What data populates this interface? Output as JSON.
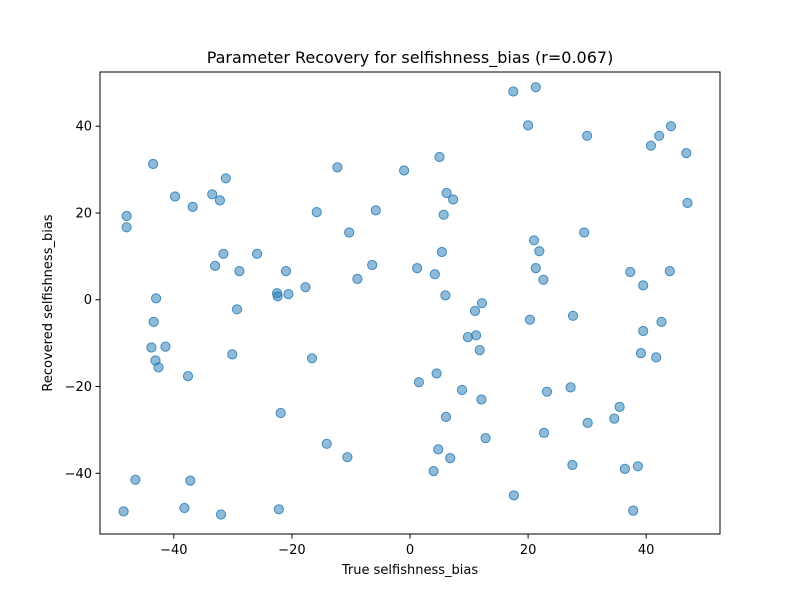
{
  "chart_data": {
    "type": "scatter",
    "title": "Parameter Recovery for selfishness_bias (r=0.067)",
    "xlabel": "True selfishness_bias",
    "ylabel": "Recovered selfishness_bias",
    "xlim": [
      -52.5,
      52.5
    ],
    "ylim": [
      -54,
      52.5
    ],
    "xticks": [
      -40,
      -20,
      0,
      20,
      40
    ],
    "yticks": [
      -40,
      -20,
      0,
      20,
      40
    ],
    "grid": false,
    "legend": "none",
    "marker_color": "#1f77b4",
    "marker_alpha": 0.5,
    "points": [
      [
        17.5,
        48.0
      ],
      [
        21.3,
        49.0
      ],
      [
        20.0,
        40.2
      ],
      [
        30.0,
        37.8
      ],
      [
        44.2,
        40.0
      ],
      [
        42.2,
        37.8
      ],
      [
        40.8,
        35.5
      ],
      [
        46.8,
        33.8
      ],
      [
        47.0,
        22.3
      ],
      [
        -43.5,
        31.3
      ],
      [
        5.0,
        32.9
      ],
      [
        -12.3,
        30.5
      ],
      [
        -1.0,
        29.8
      ],
      [
        -31.2,
        28.0
      ],
      [
        -39.8,
        23.8
      ],
      [
        -33.5,
        24.3
      ],
      [
        -32.2,
        22.9
      ],
      [
        -36.8,
        21.4
      ],
      [
        6.2,
        24.6
      ],
      [
        7.3,
        23.1
      ],
      [
        -48.0,
        19.3
      ],
      [
        -48.0,
        16.7
      ],
      [
        -15.8,
        20.2
      ],
      [
        -5.8,
        20.6
      ],
      [
        5.7,
        19.6
      ],
      [
        -10.3,
        15.5
      ],
      [
        29.5,
        15.5
      ],
      [
        21.0,
        13.7
      ],
      [
        21.9,
        11.2
      ],
      [
        -31.6,
        10.6
      ],
      [
        -25.9,
        10.6
      ],
      [
        5.4,
        11.0
      ],
      [
        -33.0,
        7.8
      ],
      [
        -6.4,
        8.0
      ],
      [
        1.2,
        7.3
      ],
      [
        21.3,
        7.3
      ],
      [
        37.3,
        6.4
      ],
      [
        44.0,
        6.6
      ],
      [
        -28.9,
        6.6
      ],
      [
        -21.0,
        6.6
      ],
      [
        4.2,
        5.9
      ],
      [
        22.6,
        4.6
      ],
      [
        -8.9,
        4.8
      ],
      [
        39.5,
        3.3
      ],
      [
        -17.7,
        2.9
      ],
      [
        -22.5,
        1.5
      ],
      [
        -20.6,
        1.3
      ],
      [
        -22.4,
        0.8
      ],
      [
        6.0,
        1.0
      ],
      [
        -43.0,
        0.3
      ],
      [
        12.2,
        -0.8
      ],
      [
        11.0,
        -2.6
      ],
      [
        -29.3,
        -2.2
      ],
      [
        27.6,
        -3.7
      ],
      [
        20.3,
        -4.6
      ],
      [
        -43.4,
        -5.1
      ],
      [
        42.6,
        -5.1
      ],
      [
        39.5,
        -7.2
      ],
      [
        11.2,
        -8.2
      ],
      [
        9.8,
        -8.6
      ],
      [
        -43.8,
        -11.0
      ],
      [
        -41.4,
        -10.8
      ],
      [
        -30.1,
        -12.6
      ],
      [
        39.1,
        -12.3
      ],
      [
        41.7,
        -13.3
      ],
      [
        11.8,
        -11.6
      ],
      [
        -16.6,
        -13.5
      ],
      [
        -43.1,
        -14.0
      ],
      [
        -42.6,
        -15.6
      ],
      [
        -37.6,
        -17.6
      ],
      [
        4.5,
        -17.0
      ],
      [
        1.5,
        -19.0
      ],
      [
        8.8,
        -20.8
      ],
      [
        27.2,
        -20.2
      ],
      [
        23.2,
        -21.2
      ],
      [
        12.1,
        -23.0
      ],
      [
        35.5,
        -24.7
      ],
      [
        -21.9,
        -26.1
      ],
      [
        6.1,
        -27.0
      ],
      [
        34.6,
        -27.4
      ],
      [
        30.1,
        -28.4
      ],
      [
        22.7,
        -30.7
      ],
      [
        12.8,
        -31.9
      ],
      [
        -14.1,
        -33.2
      ],
      [
        4.8,
        -34.5
      ],
      [
        -10.6,
        -36.3
      ],
      [
        6.8,
        -36.5
      ],
      [
        27.5,
        -38.1
      ],
      [
        38.6,
        -38.4
      ],
      [
        36.4,
        -39.0
      ],
      [
        4.0,
        -39.5
      ],
      [
        -46.5,
        -41.5
      ],
      [
        -37.2,
        -41.7
      ],
      [
        17.6,
        -45.1
      ],
      [
        -38.2,
        -48.0
      ],
      [
        -22.2,
        -48.3
      ],
      [
        -48.5,
        -48.8
      ],
      [
        -32.0,
        -49.5
      ],
      [
        37.8,
        -48.6
      ]
    ]
  }
}
